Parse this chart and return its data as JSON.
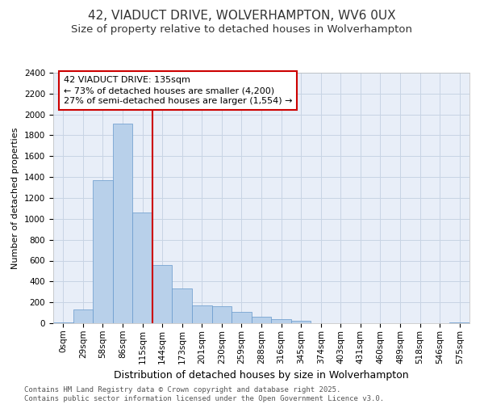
{
  "title_line1": "42, VIADUCT DRIVE, WOLVERHAMPTON, WV6 0UX",
  "title_line2": "Size of property relative to detached houses in Wolverhampton",
  "xlabel": "Distribution of detached houses by size in Wolverhampton",
  "ylabel": "Number of detached properties",
  "bin_labels": [
    "0sqm",
    "29sqm",
    "58sqm",
    "86sqm",
    "115sqm",
    "144sqm",
    "173sqm",
    "201sqm",
    "230sqm",
    "259sqm",
    "288sqm",
    "316sqm",
    "345sqm",
    "374sqm",
    "403sqm",
    "431sqm",
    "460sqm",
    "489sqm",
    "518sqm",
    "546sqm",
    "575sqm"
  ],
  "bar_values": [
    10,
    130,
    1370,
    1910,
    1060,
    560,
    335,
    170,
    165,
    110,
    60,
    38,
    25,
    0,
    0,
    0,
    0,
    0,
    0,
    0,
    10
  ],
  "bar_color": "#b8d0ea",
  "bar_edge_color": "#6699cc",
  "grid_color": "#c8d4e4",
  "background_color": "#e8eef8",
  "vline_x": 4.5,
  "vline_color": "#cc0000",
  "annotation_text": "42 VIADUCT DRIVE: 135sqm\n← 73% of detached houses are smaller (4,200)\n27% of semi-detached houses are larger (1,554) →",
  "annotation_box_edgecolor": "#cc0000",
  "ylim": [
    0,
    2400
  ],
  "yticks": [
    0,
    200,
    400,
    600,
    800,
    1000,
    1200,
    1400,
    1600,
    1800,
    2000,
    2200,
    2400
  ],
  "footer_text": "Contains HM Land Registry data © Crown copyright and database right 2025.\nContains public sector information licensed under the Open Government Licence v3.0.",
  "title1_fontsize": 11,
  "title2_fontsize": 9.5,
  "xlabel_fontsize": 9,
  "ylabel_fontsize": 8,
  "tick_fontsize": 7.5,
  "annotation_fontsize": 8,
  "footer_fontsize": 6.5
}
